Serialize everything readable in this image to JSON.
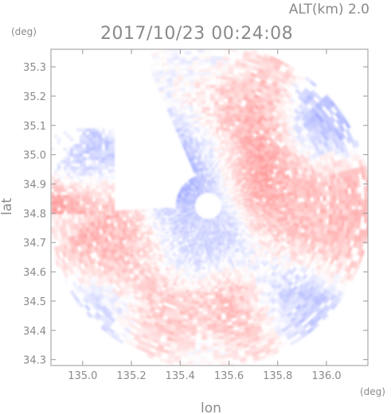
{
  "chart_data": {
    "type": "heatmap",
    "title": "2017/10/23 00:24:08",
    "altitude_label": "ALT(km) 2.0",
    "xlabel": "lon",
    "ylabel": "lat",
    "x_unit": "(deg)",
    "y_unit": "(deg)",
    "xlim": [
      134.87,
      136.17
    ],
    "ylim": [
      34.28,
      35.36
    ],
    "x_ticks": [
      "135.0",
      "135.2",
      "135.4",
      "135.6",
      "135.8",
      "136.0"
    ],
    "x_tick_values": [
      135.0,
      135.2,
      135.4,
      135.6,
      135.8,
      136.0
    ],
    "y_ticks": [
      "34.3",
      "34.4",
      "34.5",
      "34.6",
      "34.7",
      "34.8",
      "34.9",
      "35.0",
      "35.1",
      "35.2",
      "35.3"
    ],
    "y_tick_values": [
      34.3,
      34.4,
      34.5,
      34.6,
      34.7,
      34.8,
      34.9,
      35.0,
      35.1,
      35.2,
      35.3
    ],
    "radar_center": {
      "lon": 135.515,
      "lat": 34.825
    },
    "radar_range_lat_deg": 0.55,
    "inner_blank_radius_lat_deg": 0.045,
    "colors": {
      "approaching": "#6f7ff0",
      "receding": "#ff6f6f",
      "neutral": "#ffffff",
      "frame": "#999999",
      "text": "#8a8a8a"
    },
    "regions": [
      {
        "name": "strong-receding-north",
        "lon": 135.69,
        "lat": 35.02,
        "value": 0.9
      },
      {
        "name": "strong-receding-far-north",
        "lon": 135.68,
        "lat": 35.22,
        "value": 0.85
      },
      {
        "name": "approaching-west",
        "lon": 135.47,
        "lat": 35.0,
        "value": -0.85
      },
      {
        "name": "approaching-northeast",
        "lon": 135.93,
        "lat": 35.12,
        "value": -0.6
      },
      {
        "name": "receding-east-band",
        "lon": 135.98,
        "lat": 34.85,
        "value": 0.45
      },
      {
        "name": "receding-east-sector",
        "lon": 135.95,
        "lat": 34.72,
        "value": 0.35
      },
      {
        "name": "strong-receding-south",
        "lon": 135.62,
        "lat": 34.42,
        "value": 0.85
      },
      {
        "name": "receding-southwest",
        "lon": 135.3,
        "lat": 34.45,
        "value": 0.55
      },
      {
        "name": "receding-west",
        "lon": 135.15,
        "lat": 34.64,
        "value": 0.5
      },
      {
        "name": "approaching-southwest-edge",
        "lon": 135.1,
        "lat": 34.45,
        "value": -0.55
      },
      {
        "name": "approaching-south-edge",
        "lon": 135.55,
        "lat": 34.33,
        "value": -0.4
      },
      {
        "name": "approaching-southeast",
        "lon": 135.85,
        "lat": 34.5,
        "value": -0.5
      },
      {
        "name": "approaching-inner-ring",
        "lon": 135.45,
        "lat": 34.68,
        "value": -0.35
      },
      {
        "name": "receding-north-center",
        "lon": 135.55,
        "lat": 35.12,
        "value": 0.3
      },
      {
        "name": "approaching-far-north",
        "lon": 135.6,
        "lat": 35.3,
        "value": -0.4
      }
    ],
    "west_patch": {
      "lon_min": 134.87,
      "lon_max": 135.12,
      "lat_min": 34.8,
      "lat_max": 35.09,
      "regions": [
        {
          "lon": 134.92,
          "lat": 34.84,
          "value": 0.6
        },
        {
          "lon": 135.05,
          "lat": 34.87,
          "value": 0.35
        },
        {
          "lon": 135.02,
          "lat": 34.97,
          "value": -0.45
        },
        {
          "lon": 134.95,
          "lat": 34.99,
          "value": -0.25
        }
      ]
    },
    "grid": false,
    "legend": "none"
  }
}
